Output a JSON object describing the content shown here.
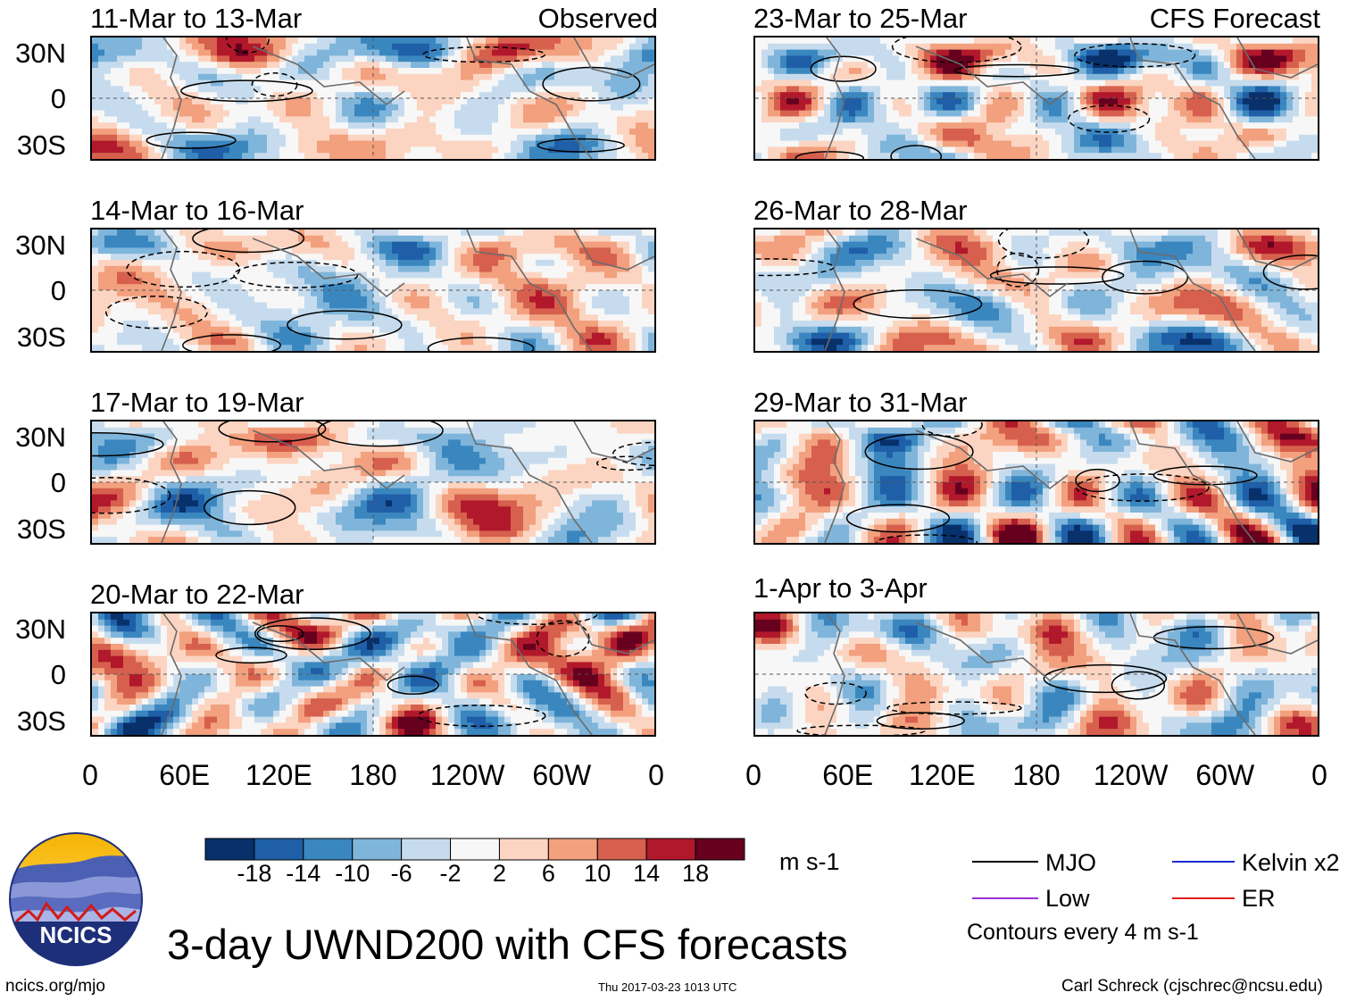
{
  "chart_data": {
    "type": "heatmap",
    "title": "3-day UWND200 with CFS forecasts",
    "variable": "UWND200",
    "units": "m s-1",
    "observed_label": "Observed",
    "forecast_label": "CFS Forecast",
    "panels": [
      {
        "period": "11-Mar to 13-Mar",
        "source": "Observed"
      },
      {
        "period": "14-Mar to 16-Mar",
        "source": "Observed"
      },
      {
        "period": "17-Mar to 19-Mar",
        "source": "Observed"
      },
      {
        "period": "20-Mar to 22-Mar",
        "source": "Observed"
      },
      {
        "period": "23-Mar to 25-Mar",
        "source": "CFS Forecast"
      },
      {
        "period": "26-Mar to 28-Mar",
        "source": "CFS Forecast"
      },
      {
        "period": "29-Mar to 31-Mar",
        "source": "CFS Forecast"
      },
      {
        "period": "1-Apr to 3-Apr",
        "source": "CFS Forecast"
      }
    ],
    "y_ticks": [
      "30N",
      "0",
      "30S"
    ],
    "x_ticks": [
      "0",
      "60E",
      "120E",
      "180",
      "120W",
      "60W",
      "0"
    ],
    "colorbar": {
      "levels": [
        "-18",
        "-14",
        "-10",
        "-6",
        "-2",
        "2",
        "6",
        "10",
        "14",
        "18"
      ],
      "colors": [
        "#08306b",
        "#1f5fa8",
        "#3a87c0",
        "#7fb5da",
        "#c6dcee",
        "#f7f7f7",
        "#fcd5c2",
        "#f2a07e",
        "#d6604d",
        "#b2182b",
        "#67001f"
      ]
    },
    "legend": [
      {
        "name": "MJO",
        "color": "#000000"
      },
      {
        "name": "Kelvin x2",
        "color": "#1a2bd6"
      },
      {
        "name": "Low",
        "color": "#9b30e0"
      },
      {
        "name": "ER",
        "color": "#e0141e"
      }
    ],
    "contour_note": "Contours every 4 m s-1"
  },
  "footer": {
    "left": "ncics.org/mjo",
    "center": "Thu 2017-03-23 1013 UTC",
    "right": "Carl Schreck (cjschrec@ncsu.edu)"
  },
  "logo": {
    "text": "NCICS"
  }
}
